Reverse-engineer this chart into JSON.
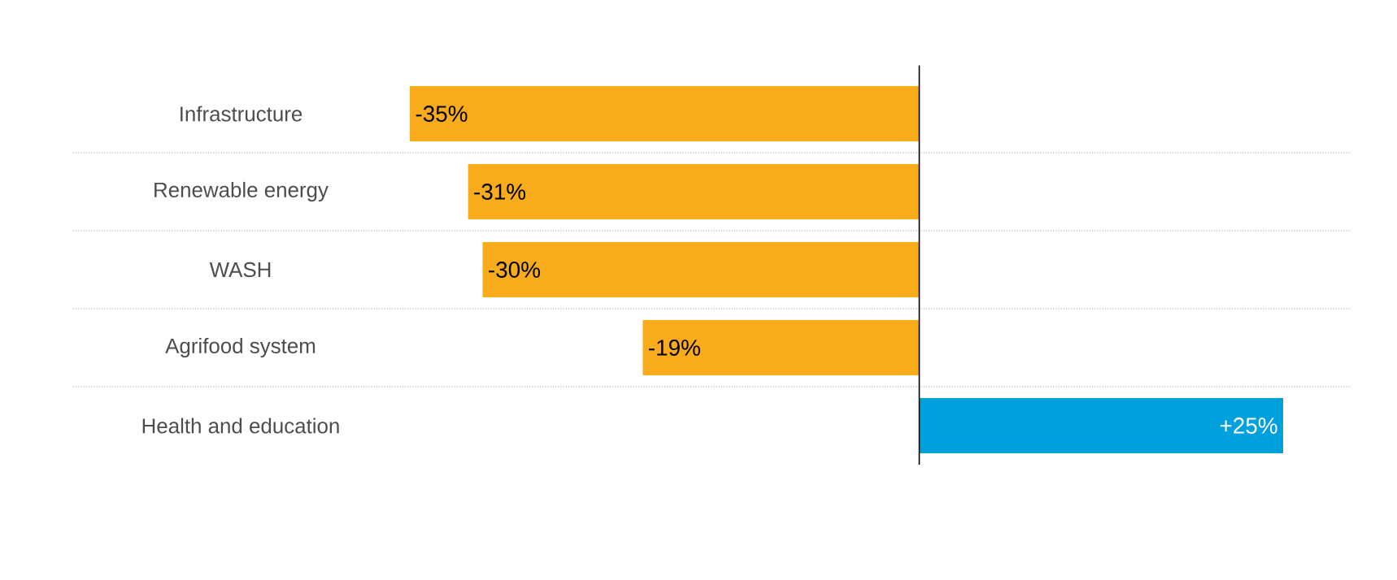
{
  "chart_data": {
    "type": "bar",
    "orientation": "horizontal",
    "categories": [
      "Infrastructure",
      "Renewable energy",
      "WASH",
      "Agrifood system",
      "Health and education"
    ],
    "values": [
      -35,
      -31,
      -30,
      -19,
      25
    ],
    "colors": [
      "#f8ac1b",
      "#f8ac1b",
      "#f8ac1b",
      "#f8ac1b",
      "#00a0dc"
    ],
    "value_labels": [
      "-35%",
      "-31%",
      "-30%",
      "-19%",
      "+25%"
    ],
    "grid": "y",
    "tick_labels": "y"
  }
}
